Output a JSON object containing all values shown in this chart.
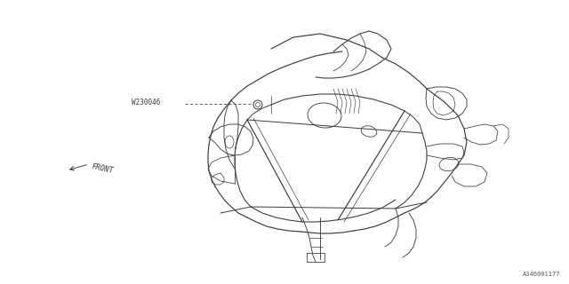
{
  "bg_color": "#ffffff",
  "line_color": "#3a3a3a",
  "line_width": 0.7,
  "part_label": "W230046",
  "front_label": "FRONT",
  "diagram_id": "A346001177",
  "fig_width": 6.4,
  "fig_height": 3.2,
  "dpi": 100
}
